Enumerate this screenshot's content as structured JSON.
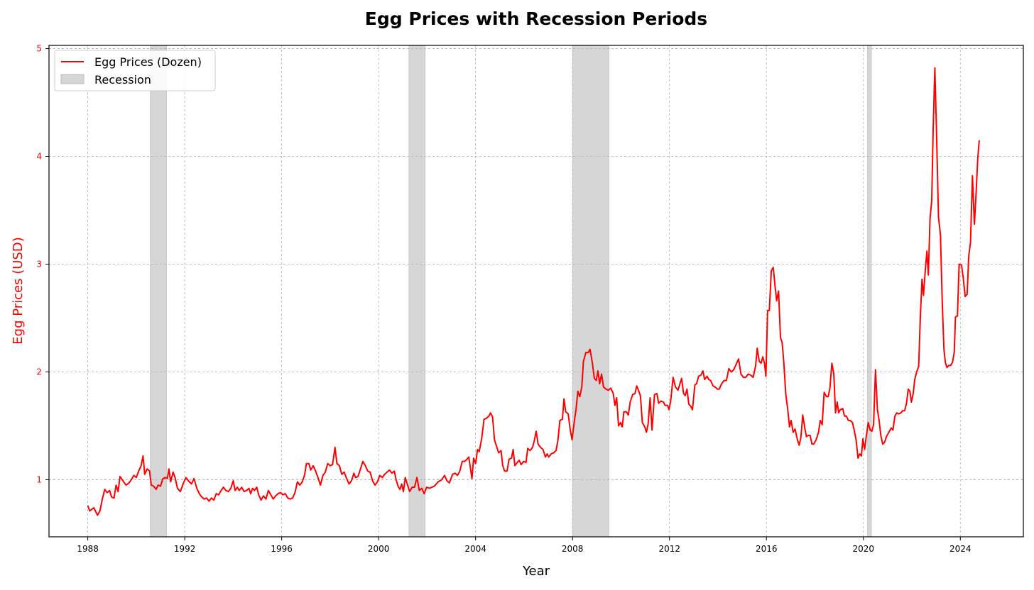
{
  "chart_data": {
    "type": "line",
    "title": "Egg Prices with Recession Periods",
    "xlabel": "Year",
    "ylabel": "Egg Prices (USD)",
    "xlim": [
      1986.4,
      2026.6
    ],
    "ylim": [
      0.47,
      5.03
    ],
    "x_ticks": [
      1988,
      1992,
      1996,
      2000,
      2004,
      2008,
      2012,
      2016,
      2020,
      2024
    ],
    "x_tick_labels": [
      "1988",
      "1992",
      "1996",
      "2000",
      "2004",
      "2008",
      "2012",
      "2016",
      "2020",
      "2024"
    ],
    "y_ticks": [
      1,
      2,
      3,
      4,
      5
    ],
    "y_tick_labels": [
      "1",
      "2",
      "3",
      "4",
      "5"
    ],
    "grid": true,
    "legend": {
      "position": "top-left",
      "line_label": "Egg Prices (Dozen)",
      "band_label": "Recession"
    },
    "colors": {
      "line": "#ff0000",
      "recession": "#d6d6d6",
      "ylabel": "#ff0000",
      "yticks": "#ff0000"
    },
    "recessions": [
      {
        "start": 1990.58,
        "end": 1991.25
      },
      {
        "start": 2001.25,
        "end": 2001.92
      },
      {
        "start": 2008.0,
        "end": 2009.5
      },
      {
        "start": 2020.17,
        "end": 2020.33
      }
    ],
    "series": [
      {
        "name": "Egg Prices (Dozen)",
        "points": [
          [
            1988.0,
            0.76
          ],
          [
            1988.1,
            0.71
          ],
          [
            1988.25,
            0.74
          ],
          [
            1988.4,
            0.67
          ],
          [
            1988.5,
            0.72
          ],
          [
            1988.6,
            0.84
          ],
          [
            1988.7,
            0.91
          ],
          [
            1988.8,
            0.88
          ],
          [
            1988.9,
            0.9
          ],
          [
            1988.95,
            0.85
          ],
          [
            1989.1,
            0.84
          ],
          [
            1989.2,
            0.95
          ],
          [
            1989.3,
            0.9
          ],
          [
            1989.4,
            1.03
          ],
          [
            1989.5,
            1.0
          ],
          [
            1989.6,
            0.97
          ],
          [
            1989.7,
            0.95
          ],
          [
            1989.8,
            0.98
          ],
          [
            1989.9,
            1.0
          ],
          [
            1990.0,
            1.04
          ],
          [
            1990.1,
            1.03
          ],
          [
            1990.2,
            1.1
          ],
          [
            1990.35,
            1.22
          ],
          [
            1990.45,
            1.05
          ],
          [
            1990.55,
            1.1
          ],
          [
            1990.65,
            1.08
          ],
          [
            1990.75,
            0.95
          ],
          [
            1990.85,
            0.94
          ],
          [
            1990.95,
            0.91
          ],
          [
            1991.0,
            0.94
          ],
          [
            1991.1,
            0.96
          ],
          [
            1991.25,
            1.02
          ],
          [
            1991.35,
            1.01
          ],
          [
            1991.45,
            1.1
          ],
          [
            1991.5,
            0.98
          ],
          [
            1991.6,
            1.07
          ],
          [
            1991.7,
            1.02
          ],
          [
            1991.8,
            0.92
          ],
          [
            1991.9,
            0.89
          ],
          [
            1992.0,
            0.97
          ],
          [
            1992.1,
            1.01
          ],
          [
            1992.2,
            0.99
          ],
          [
            1992.3,
            0.97
          ],
          [
            1992.4,
            0.95
          ],
          [
            1992.5,
            1.01
          ],
          [
            1992.6,
            0.92
          ],
          [
            1992.7,
            0.87
          ],
          [
            1992.8,
            0.84
          ],
          [
            1992.9,
            0.82
          ],
          [
            1993.0,
            0.83
          ],
          [
            1993.1,
            0.8
          ],
          [
            1993.2,
            0.83
          ],
          [
            1993.3,
            0.81
          ],
          [
            1993.4,
            0.87
          ],
          [
            1993.5,
            0.86
          ],
          [
            1993.6,
            0.9
          ],
          [
            1993.7,
            0.93
          ],
          [
            1993.8,
            0.9
          ],
          [
            1993.9,
            0.89
          ],
          [
            1994.0,
            0.92
          ],
          [
            1994.1,
            0.99
          ],
          [
            1994.2,
            0.9
          ],
          [
            1994.3,
            0.93
          ],
          [
            1994.4,
            0.9
          ],
          [
            1994.5,
            0.93
          ],
          [
            1994.6,
            0.89
          ],
          [
            1994.7,
            0.9
          ],
          [
            1994.8,
            0.92
          ],
          [
            1994.9,
            0.87
          ],
          [
            1995.0,
            0.92
          ],
          [
            1995.1,
            0.9
          ],
          [
            1995.2,
            0.93
          ],
          [
            1995.3,
            0.86
          ],
          [
            1995.4,
            0.81
          ],
          [
            1995.5,
            0.85
          ],
          [
            1995.6,
            0.82
          ],
          [
            1995.7,
            0.9
          ],
          [
            1995.8,
            0.86
          ],
          [
            1995.9,
            0.82
          ],
          [
            1996.0,
            0.85
          ],
          [
            1996.1,
            0.87
          ],
          [
            1996.2,
            0.88
          ],
          [
            1996.3,
            0.86
          ],
          [
            1996.4,
            0.87
          ],
          [
            1996.5,
            0.83
          ],
          [
            1996.6,
            0.82
          ],
          [
            1996.7,
            0.83
          ],
          [
            1996.8,
            0.88
          ],
          [
            1996.9,
            0.98
          ],
          [
            1997.0,
            0.95
          ],
          [
            1997.1,
            0.98
          ],
          [
            1997.2,
            1.05
          ],
          [
            1997.3,
            1.15
          ],
          [
            1997.4,
            1.15
          ],
          [
            1997.5,
            1.09
          ],
          [
            1997.6,
            1.13
          ],
          [
            1997.7,
            1.08
          ],
          [
            1997.8,
            1.02
          ],
          [
            1997.9,
            0.95
          ],
          [
            1998.0,
            1.04
          ],
          [
            1998.1,
            1.07
          ],
          [
            1998.2,
            1.15
          ],
          [
            1998.3,
            1.13
          ],
          [
            1998.4,
            1.14
          ],
          [
            1998.5,
            1.3
          ],
          [
            1998.6,
            1.15
          ],
          [
            1998.7,
            1.13
          ],
          [
            1998.8,
            1.05
          ],
          [
            1998.9,
            1.07
          ],
          [
            1999.0,
            1.01
          ],
          [
            1999.1,
            0.96
          ],
          [
            1999.2,
            0.99
          ],
          [
            1999.3,
            1.06
          ],
          [
            1999.4,
            1.02
          ],
          [
            1999.5,
            1.03
          ],
          [
            1999.6,
            1.1
          ],
          [
            1999.7,
            1.17
          ],
          [
            1999.8,
            1.13
          ],
          [
            1999.9,
            1.08
          ],
          [
            2000.0,
            1.07
          ],
          [
            2000.1,
            0.99
          ],
          [
            2000.2,
            0.95
          ],
          [
            2000.3,
            0.98
          ],
          [
            2000.4,
            1.04
          ],
          [
            2000.5,
            1.02
          ],
          [
            2000.6,
            1.05
          ],
          [
            2000.7,
            1.07
          ],
          [
            2000.8,
            1.09
          ],
          [
            2000.9,
            1.06
          ],
          [
            2001.0,
            1.08
          ],
          [
            2001.1,
            1.0
          ],
          [
            2001.2,
            0.94
          ],
          [
            2001.3,
            0.9
          ],
          [
            2001.4,
            0.96
          ],
          [
            2001.45,
            0.89
          ],
          [
            2001.55,
            1.02
          ],
          [
            2001.65,
            0.96
          ],
          [
            2001.75,
            0.89
          ],
          [
            2001.85,
            0.93
          ],
          [
            2001.95,
            0.93
          ],
          [
            2000.0,
            0.97
          ]
        ]
      }
    ]
  },
  "series_raw": [
    [
      1988.0,
      0.76
    ],
    [
      1988.08,
      0.71
    ],
    [
      1988.25,
      0.74
    ],
    [
      1988.4,
      0.67
    ],
    [
      1988.5,
      0.71
    ],
    [
      1988.6,
      0.82
    ],
    [
      1988.7,
      0.91
    ],
    [
      1988.8,
      0.88
    ],
    [
      1988.9,
      0.9
    ],
    [
      1988.98,
      0.84
    ],
    [
      1989.08,
      0.83
    ],
    [
      1989.17,
      0.95
    ],
    [
      1989.25,
      0.89
    ],
    [
      1989.33,
      1.03
    ],
    [
      1989.45,
      0.99
    ],
    [
      1989.58,
      0.95
    ],
    [
      1989.7,
      0.97
    ],
    [
      1989.8,
      1.0
    ],
    [
      1989.9,
      1.04
    ],
    [
      1990.0,
      1.02
    ],
    [
      1990.1,
      1.08
    ],
    [
      1990.2,
      1.13
    ],
    [
      1990.28,
      1.22
    ],
    [
      1990.35,
      1.05
    ],
    [
      1990.45,
      1.1
    ],
    [
      1990.55,
      1.08
    ],
    [
      1990.62,
      0.95
    ],
    [
      1990.72,
      0.94
    ],
    [
      1990.82,
      0.91
    ],
    [
      1990.9,
      0.95
    ],
    [
      1991.0,
      0.94
    ],
    [
      1991.1,
      1.01
    ],
    [
      1991.2,
      1.02
    ],
    [
      1991.28,
      1.01
    ],
    [
      1991.35,
      1.1
    ],
    [
      1991.42,
      0.98
    ],
    [
      1991.52,
      1.07
    ],
    [
      1991.6,
      1.02
    ],
    [
      1991.7,
      0.92
    ],
    [
      1991.82,
      0.89
    ],
    [
      1991.95,
      0.97
    ],
    [
      1992.05,
      1.02
    ],
    [
      1992.15,
      0.99
    ],
    [
      1992.28,
      0.96
    ],
    [
      1992.38,
      1.01
    ],
    [
      1992.5,
      0.92
    ],
    [
      1992.6,
      0.87
    ],
    [
      1992.7,
      0.84
    ],
    [
      1992.8,
      0.82
    ],
    [
      1992.9,
      0.83
    ],
    [
      1993.0,
      0.8
    ],
    [
      1993.1,
      0.83
    ],
    [
      1993.2,
      0.81
    ],
    [
      1993.3,
      0.87
    ],
    [
      1993.4,
      0.86
    ],
    [
      1993.5,
      0.9
    ],
    [
      1993.6,
      0.93
    ],
    [
      1993.7,
      0.9
    ],
    [
      1993.8,
      0.89
    ],
    [
      1993.9,
      0.92
    ],
    [
      1994.0,
      0.99
    ],
    [
      1994.08,
      0.9
    ],
    [
      1994.17,
      0.93
    ],
    [
      1994.25,
      0.9
    ],
    [
      1994.35,
      0.93
    ],
    [
      1994.45,
      0.89
    ],
    [
      1994.55,
      0.9
    ],
    [
      1994.65,
      0.92
    ],
    [
      1994.72,
      0.87
    ],
    [
      1994.8,
      0.92
    ],
    [
      1994.88,
      0.9
    ],
    [
      1994.97,
      0.93
    ],
    [
      1995.05,
      0.86
    ],
    [
      1995.15,
      0.81
    ],
    [
      1995.25,
      0.85
    ],
    [
      1995.35,
      0.82
    ],
    [
      1995.45,
      0.9
    ],
    [
      1995.55,
      0.86
    ],
    [
      1995.65,
      0.82
    ],
    [
      1995.75,
      0.85
    ],
    [
      1995.85,
      0.87
    ],
    [
      1995.95,
      0.88
    ],
    [
      1996.05,
      0.86
    ],
    [
      1996.15,
      0.87
    ],
    [
      1996.25,
      0.83
    ],
    [
      1996.35,
      0.82
    ],
    [
      1996.45,
      0.83
    ],
    [
      1996.55,
      0.88
    ],
    [
      1996.65,
      0.98
    ],
    [
      1996.75,
      0.95
    ],
    [
      1996.85,
      0.98
    ],
    [
      1996.95,
      1.05
    ],
    [
      1997.02,
      1.15
    ],
    [
      1997.12,
      1.15
    ],
    [
      1997.2,
      1.09
    ],
    [
      1997.3,
      1.13
    ],
    [
      1997.4,
      1.08
    ],
    [
      1997.5,
      1.02
    ],
    [
      1997.6,
      0.95
    ],
    [
      1997.7,
      1.04
    ],
    [
      1997.8,
      1.07
    ],
    [
      1997.9,
      1.15
    ],
    [
      1998.0,
      1.13
    ],
    [
      1998.1,
      1.14
    ],
    [
      1998.2,
      1.3
    ],
    [
      1998.28,
      1.15
    ],
    [
      1998.38,
      1.13
    ],
    [
      1998.48,
      1.05
    ],
    [
      1998.58,
      1.07
    ],
    [
      1998.68,
      1.01
    ],
    [
      1998.78,
      0.96
    ],
    [
      1998.88,
      0.99
    ],
    [
      1998.98,
      1.06
    ],
    [
      1999.05,
      1.02
    ],
    [
      1999.15,
      1.03
    ],
    [
      1999.25,
      1.1
    ],
    [
      1999.35,
      1.17
    ],
    [
      1999.45,
      1.13
    ],
    [
      1999.55,
      1.08
    ],
    [
      1999.65,
      1.07
    ],
    [
      1999.75,
      0.99
    ],
    [
      1999.85,
      0.95
    ],
    [
      1999.95,
      0.98
    ],
    [
      2000.05,
      1.04
    ],
    [
      2000.15,
      1.02
    ],
    [
      2000.25,
      1.05
    ],
    [
      2000.35,
      1.07
    ],
    [
      2000.45,
      1.09
    ],
    [
      2000.55,
      1.06
    ],
    [
      2000.65,
      1.08
    ],
    [
      2000.72,
      1.0
    ],
    [
      2000.8,
      0.94
    ],
    [
      2000.88,
      0.91
    ],
    [
      2000.95,
      0.96
    ],
    [
      2001.02,
      0.89
    ],
    [
      2001.1,
      1.02
    ],
    [
      2001.18,
      0.96
    ],
    [
      2001.28,
      0.89
    ],
    [
      2001.38,
      0.93
    ],
    [
      2001.48,
      0.93
    ]
  ]
}
